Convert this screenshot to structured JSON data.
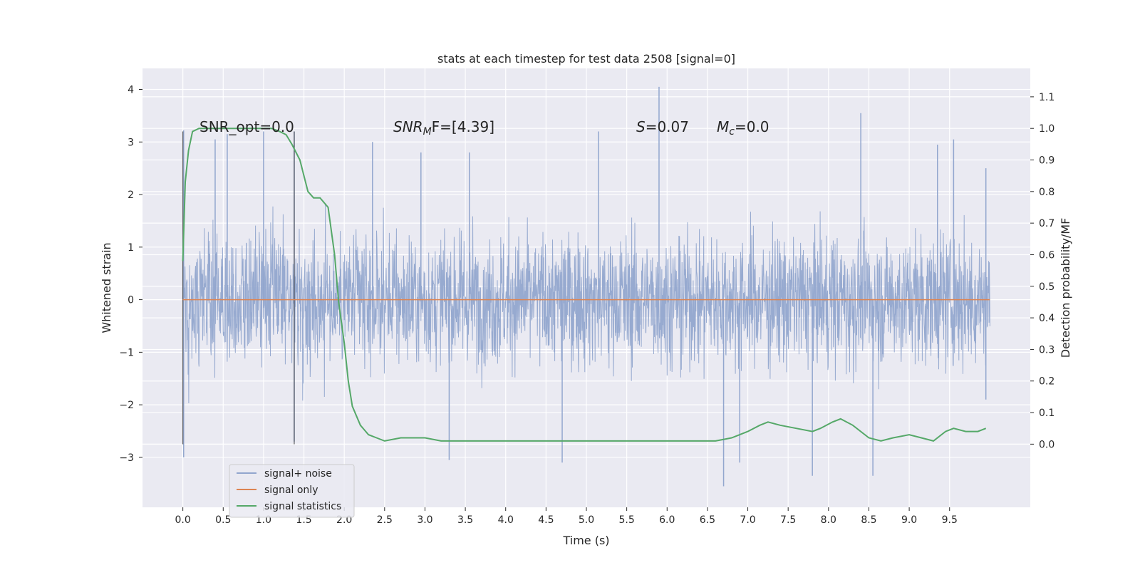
{
  "chart_data": {
    "type": "line",
    "title": "stats at each timestep for test data 2508 [signal=0]",
    "xlabel": "Time (s)",
    "ylabel": "Whitened strain",
    "y2label": "Detection probability/MF",
    "xlim": [
      -0.5,
      10.5
    ],
    "ylim": [
      -3.95,
      4.4
    ],
    "y2lim": [
      -0.2,
      1.19
    ],
    "xticks": [
      "0.0",
      "0.5",
      "1.0",
      "1.5",
      "2.0",
      "2.5",
      "3.0",
      "3.5",
      "4.0",
      "4.5",
      "5.0",
      "5.5",
      "6.0",
      "6.5",
      "7.0",
      "7.5",
      "8.0",
      "8.5",
      "9.0",
      "9.5"
    ],
    "yticks": [
      "4",
      "3",
      "2",
      "1",
      "0",
      "−1",
      "−2",
      "−3"
    ],
    "y2ticks": [
      "1.1",
      "1.0",
      "0.9",
      "0.8",
      "0.7",
      "0.6",
      "0.5",
      "0.4",
      "0.3",
      "0.2",
      "0.1",
      "0.0"
    ],
    "grid": true,
    "legend_position": "lower-left",
    "annotations": {
      "snr_opt": "SNR_opt=0.0",
      "snr_mf_base": "SNR",
      "snr_mf_sub": "M",
      "snr_mf_rest": "F=[4.39]",
      "s_var": "S",
      "s_rest": "=0.07",
      "mc_var": "M",
      "mc_sub": "c",
      "mc_rest": "=0.0"
    },
    "markers_x": [
      0.0,
      1.38
    ],
    "series": [
      {
        "name": "signal+ noise",
        "color": "#92a6ce",
        "noise_sigma": 0.62,
        "x_range": [
          0.0,
          10.0
        ],
        "peaks": [
          [
            0.01,
            3.22
          ],
          [
            0.01,
            -3.0
          ],
          [
            0.4,
            3.05
          ],
          [
            0.55,
            3.15
          ],
          [
            1.0,
            3.2
          ],
          [
            1.38,
            3.2
          ],
          [
            1.38,
            -2.7
          ],
          [
            2.35,
            3.0
          ],
          [
            2.95,
            2.8
          ],
          [
            3.55,
            2.8
          ],
          [
            3.3,
            -3.05
          ],
          [
            4.7,
            -3.1
          ],
          [
            5.15,
            3.2
          ],
          [
            5.9,
            4.05
          ],
          [
            6.7,
            -3.55
          ],
          [
            6.9,
            -3.1
          ],
          [
            7.8,
            -3.35
          ],
          [
            8.4,
            3.55
          ],
          [
            8.55,
            -3.35
          ],
          [
            9.35,
            2.95
          ],
          [
            9.55,
            3.05
          ],
          [
            9.95,
            2.5
          ],
          [
            9.95,
            -1.9
          ]
        ]
      },
      {
        "name": "signal only",
        "color": "#dd8452",
        "x": [
          0.0,
          10.0
        ],
        "values": [
          0.0,
          0.0
        ]
      },
      {
        "name": "signal statistics",
        "color": "#55a868",
        "axis": "right",
        "x": [
          0.0,
          0.03,
          0.07,
          0.12,
          0.2,
          0.35,
          0.6,
          0.9,
          1.1,
          1.2,
          1.28,
          1.35,
          1.45,
          1.55,
          1.62,
          1.7,
          1.8,
          1.88,
          1.93,
          2.0,
          2.05,
          2.1,
          2.2,
          2.3,
          2.4,
          2.5,
          2.7,
          3.0,
          3.2,
          3.5,
          4.0,
          4.5,
          5.0,
          5.5,
          5.8,
          6.0,
          6.3,
          6.6,
          6.8,
          7.0,
          7.15,
          7.25,
          7.4,
          7.6,
          7.8,
          7.9,
          8.05,
          8.15,
          8.3,
          8.5,
          8.65,
          8.8,
          9.0,
          9.15,
          9.3,
          9.45,
          9.55,
          9.7,
          9.85,
          9.95
        ],
        "values": [
          0.58,
          0.83,
          0.93,
          0.99,
          1.0,
          1.0,
          1.0,
          1.0,
          1.0,
          0.99,
          0.98,
          0.95,
          0.9,
          0.8,
          0.78,
          0.78,
          0.75,
          0.6,
          0.45,
          0.32,
          0.2,
          0.12,
          0.06,
          0.03,
          0.02,
          0.01,
          0.02,
          0.02,
          0.01,
          0.01,
          0.01,
          0.01,
          0.01,
          0.01,
          0.01,
          0.01,
          0.01,
          0.01,
          0.02,
          0.04,
          0.06,
          0.07,
          0.06,
          0.05,
          0.04,
          0.05,
          0.07,
          0.08,
          0.06,
          0.02,
          0.01,
          0.02,
          0.03,
          0.02,
          0.01,
          0.04,
          0.05,
          0.04,
          0.04,
          0.05
        ]
      }
    ]
  }
}
